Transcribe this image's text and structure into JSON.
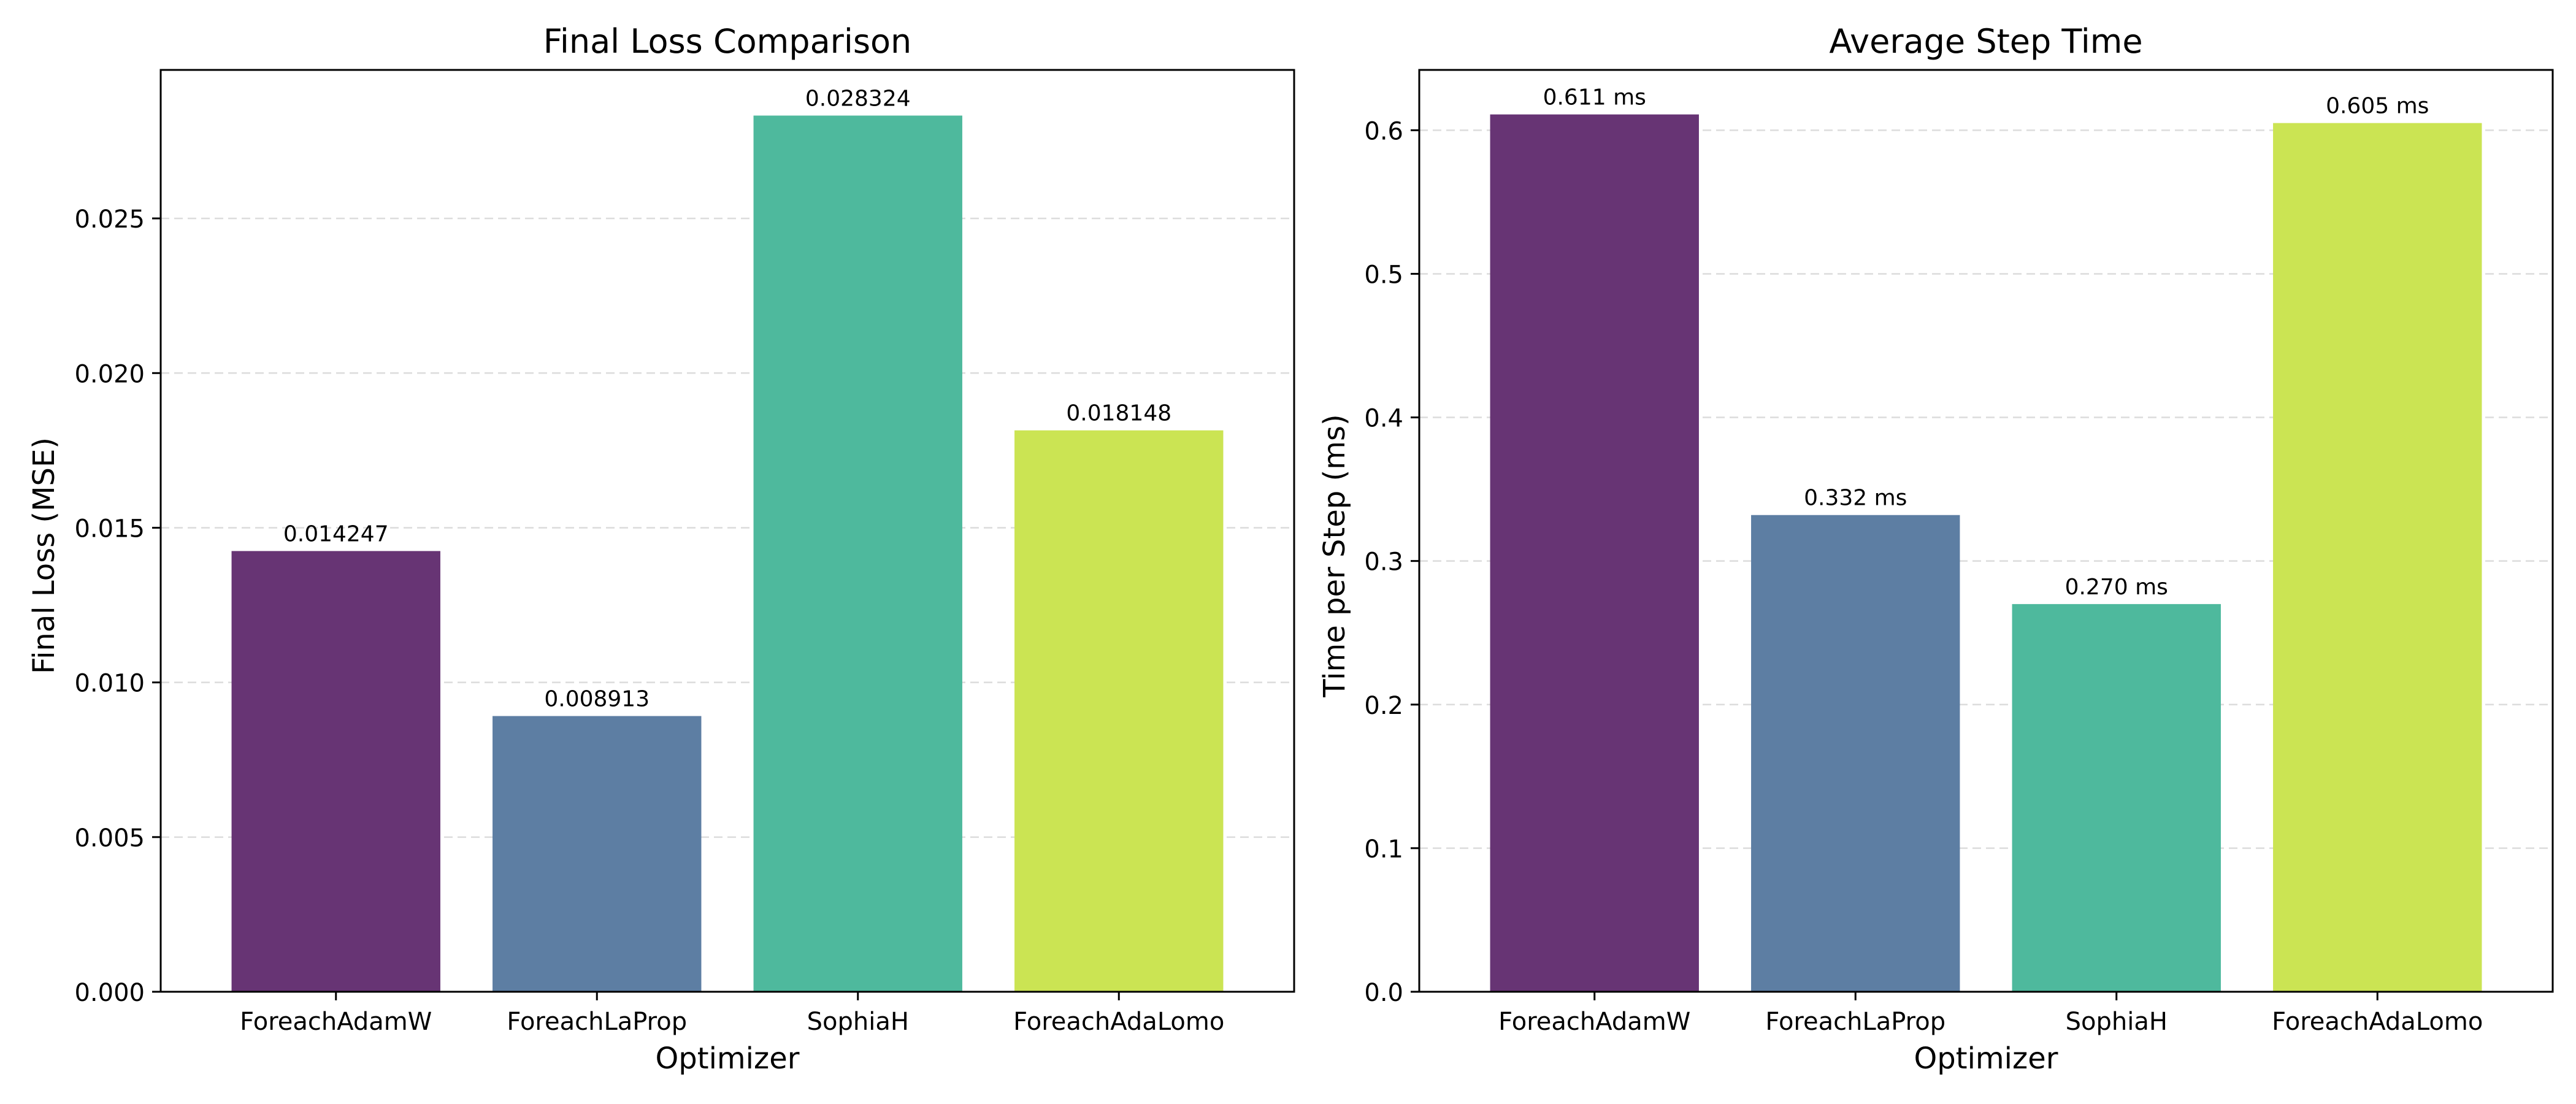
{
  "chart_data": [
    {
      "type": "bar",
      "title": "Final Loss Comparison",
      "xlabel": "Optimizer",
      "ylabel": "Final Loss (MSE)",
      "categories": [
        "ForeachAdamW",
        "ForeachLaProp",
        "SophiaH",
        "ForeachAdaLomo"
      ],
      "values": [
        0.014247,
        0.008913,
        0.028324,
        0.018148
      ],
      "value_labels": [
        "0.014247",
        "0.008913",
        "0.028324",
        "0.018148"
      ],
      "ylim": [
        0,
        0.0298
      ],
      "yticks": [
        0.0,
        0.005,
        0.01,
        0.015,
        0.02,
        0.025
      ],
      "ytick_labels": [
        "0.000",
        "0.005",
        "0.010",
        "0.015",
        "0.020",
        "0.025"
      ],
      "grid": "y-dashed",
      "colors": [
        "#673474",
        "#5d7ea3",
        "#4eb99d",
        "#cbe453"
      ]
    },
    {
      "type": "bar",
      "title": "Average Step Time",
      "xlabel": "Optimizer",
      "ylabel": "Time per Step (ms)",
      "categories": [
        "ForeachAdamW",
        "ForeachLaProp",
        "SophiaH",
        "ForeachAdaLomo"
      ],
      "values": [
        0.611,
        0.332,
        0.27,
        0.605
      ],
      "value_labels": [
        "0.611 ms",
        "0.332 ms",
        "0.270 ms",
        "0.605 ms"
      ],
      "ylim": [
        0,
        0.642
      ],
      "yticks": [
        0.0,
        0.1,
        0.2,
        0.3,
        0.4,
        0.5,
        0.6
      ],
      "ytick_labels": [
        "0.0",
        "0.1",
        "0.2",
        "0.3",
        "0.4",
        "0.5",
        "0.6"
      ],
      "grid": "y-dashed",
      "colors": [
        "#673474",
        "#5d7ea3",
        "#4eb99d",
        "#cbe453"
      ]
    }
  ]
}
